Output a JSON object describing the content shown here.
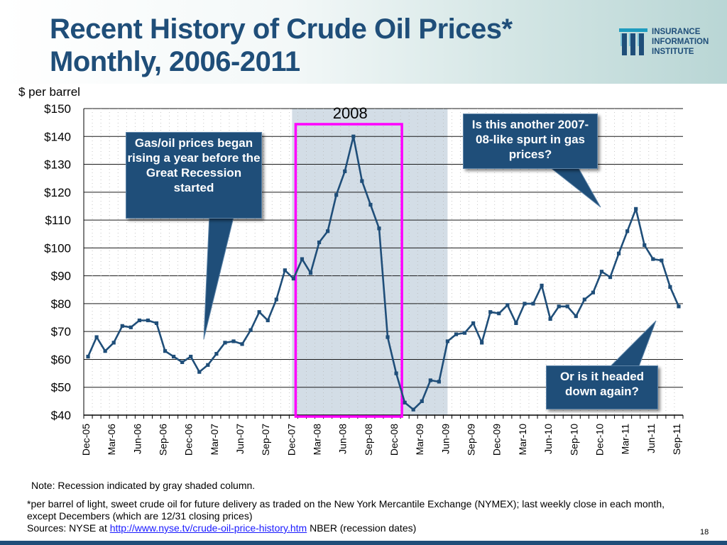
{
  "slide": {
    "title_line1": "Recent History of Crude Oil Prices*",
    "title_line2": "Monthly, 2006-2011",
    "logo": {
      "line1": "INSURANCE",
      "line2": "INFORMATION",
      "line3": "INSTITUTE"
    },
    "note": "Note: Recession indicated by gray shaded column.",
    "footnote": "*per barrel of light, sweet crude oil for future delivery as traded on the New York Mercantile Exchange (NYMEX); last weekly close in each month, except Decembers (which are 12/31 closing prices)",
    "sources_prefix": "Sources: NYSE at ",
    "sources_link": "http://www.nyse.tv/crude-oil-price-history.htm",
    "sources_suffix": "  NBER (recession dates)",
    "page_number": "18",
    "colors": {
      "title": "#1f4e79",
      "callout": "#1f4e79",
      "highlight_box": "#ff00ff",
      "recession": "#d3dde6"
    }
  },
  "callouts": {
    "left": "Gas/oil prices began rising a year before the Great Recession started",
    "right_top": "Is this another 2007-08-like spurt in gas prices?",
    "right_bottom": "Or is it headed down again?"
  },
  "chart_data": {
    "type": "line",
    "ylabel": "$ per barrel",
    "ylim": [
      40,
      150
    ],
    "y_ticks": [
      "$150",
      "$140",
      "$130",
      "$120",
      "$110",
      "$100",
      "$90",
      "$80",
      "$70",
      "$60",
      "$50",
      "$40"
    ],
    "x_tick_labels": [
      "Dec-05",
      "Mar-06",
      "Jun-06",
      "Sep-06",
      "Dec-06",
      "Mar-07",
      "Jun-07",
      "Sep-07",
      "Dec-07",
      "Mar-08",
      "Jun-08",
      "Sep-08",
      "Dec-08",
      "Mar-09",
      "Jun-09",
      "Sep-09",
      "Dec-09",
      "Mar-10",
      "Jun-10",
      "Sep-10",
      "Dec-10",
      "Mar-11",
      "Jun-11",
      "Sep-11"
    ],
    "highlight_label": "2008",
    "recession": {
      "start": "Dec-07",
      "end": "Jun-09"
    },
    "highlight_box": {
      "start": "Jan-08",
      "end": "Jan-09"
    },
    "grid": true,
    "series": [
      {
        "values": [
          61.0,
          68.0,
          63.0,
          66.0,
          72.0,
          71.5,
          74.0,
          74.0,
          73.0,
          63.0,
          61.0,
          59.0,
          61.0,
          55.5,
          58.0,
          62.0,
          66.0,
          66.5,
          65.5,
          70.5,
          77.0,
          74.0,
          81.5,
          92.0,
          89.0,
          96.0,
          91.0,
          102.0,
          106.0,
          119.0,
          127.5,
          140.0,
          124.0,
          115.5,
          107.0,
          68.0,
          55.0,
          44.5,
          42.0,
          45.0,
          52.5,
          52.0,
          66.5,
          69.0,
          69.5,
          73.0,
          66.0,
          77.0,
          76.5,
          79.5,
          73.0,
          80.0,
          80.0,
          86.5,
          74.5,
          79.0,
          79.0,
          75.5,
          81.5,
          84.0,
          91.5,
          89.5,
          98.0,
          106.0,
          114.0,
          101.0,
          96.0,
          95.5,
          86.0,
          79.0
        ]
      }
    ]
  }
}
